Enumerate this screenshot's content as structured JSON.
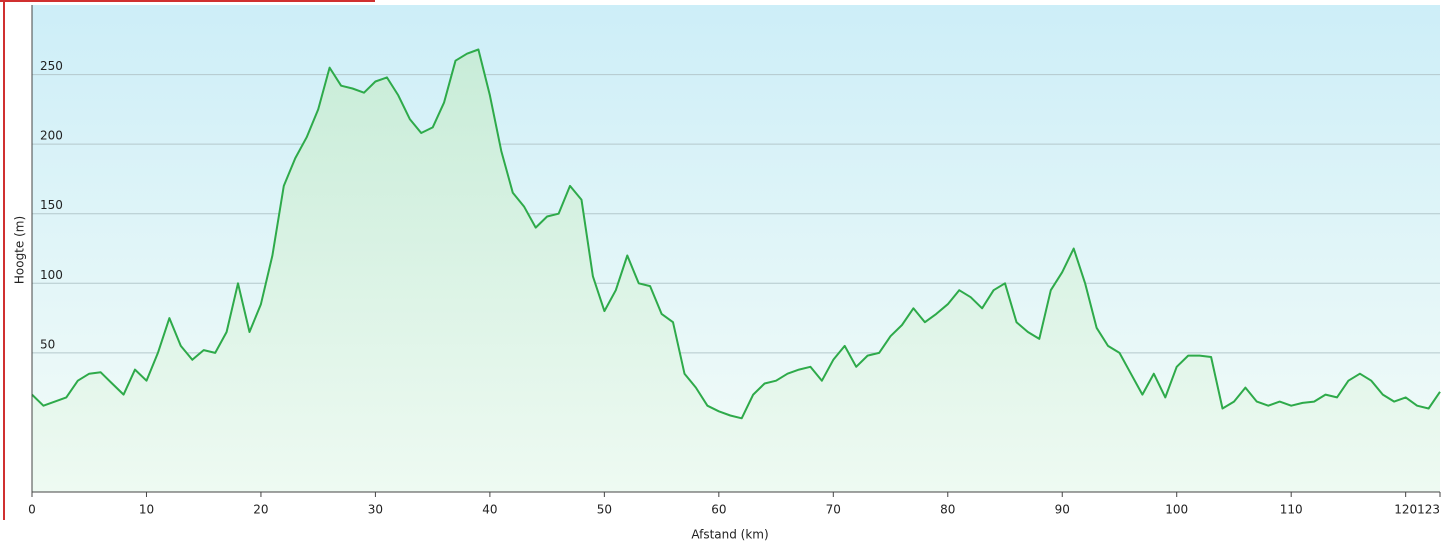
{
  "chart_data": {
    "type": "area",
    "xlabel": "Afstand  (km)",
    "ylabel": "Hoogte (m)",
    "x": [
      0,
      1,
      2,
      3,
      4,
      5,
      6,
      7,
      8,
      9,
      10,
      11,
      12,
      13,
      14,
      15,
      16,
      17,
      18,
      19,
      20,
      21,
      22,
      23,
      24,
      25,
      26,
      27,
      28,
      29,
      30,
      31,
      32,
      33,
      34,
      35,
      36,
      37,
      38,
      39,
      40,
      41,
      42,
      43,
      44,
      45,
      46,
      47,
      48,
      49,
      50,
      51,
      52,
      53,
      54,
      55,
      56,
      57,
      58,
      59,
      60,
      61,
      62,
      63,
      64,
      65,
      66,
      67,
      68,
      69,
      70,
      71,
      72,
      73,
      74,
      75,
      76,
      77,
      78,
      79,
      80,
      81,
      82,
      83,
      84,
      85,
      86,
      87,
      88,
      89,
      90,
      91,
      92,
      93,
      94,
      95,
      96,
      97,
      98,
      99,
      100,
      101,
      102,
      103,
      104,
      105,
      106,
      107,
      108,
      109,
      110,
      111,
      112,
      113,
      114,
      115,
      116,
      117,
      118,
      119,
      120,
      121,
      122,
      123
    ],
    "values": [
      20,
      12,
      15,
      18,
      30,
      35,
      36,
      28,
      20,
      38,
      30,
      50,
      75,
      55,
      45,
      52,
      50,
      65,
      100,
      65,
      85,
      120,
      170,
      190,
      205,
      225,
      255,
      242,
      240,
      237,
      245,
      248,
      235,
      218,
      208,
      212,
      230,
      260,
      265,
      268,
      235,
      195,
      165,
      155,
      140,
      148,
      150,
      170,
      160,
      105,
      80,
      95,
      120,
      100,
      98,
      78,
      72,
      35,
      25,
      12,
      8,
      5,
      3,
      20,
      28,
      30,
      35,
      38,
      40,
      30,
      45,
      55,
      40,
      48,
      50,
      62,
      70,
      82,
      72,
      78,
      85,
      95,
      90,
      82,
      95,
      100,
      72,
      65,
      60,
      95,
      108,
      125,
      100,
      68,
      55,
      50,
      35,
      20,
      35,
      18,
      40,
      48,
      48,
      47,
      10,
      15,
      25,
      15,
      12,
      15,
      12,
      14,
      15,
      20,
      18,
      30,
      35,
      30,
      20,
      15,
      18,
      12,
      10,
      22
    ],
    "color": "#2eaa4a",
    "xlim": [
      0,
      123
    ],
    "xticks": [
      0,
      10,
      20,
      30,
      40,
      50,
      60,
      70,
      80,
      90,
      100,
      110,
      120,
      123
    ],
    "ylim": [
      -50,
      300
    ],
    "yticks": [
      0,
      50,
      100,
      150,
      200,
      250
    ],
    "grid": true
  }
}
